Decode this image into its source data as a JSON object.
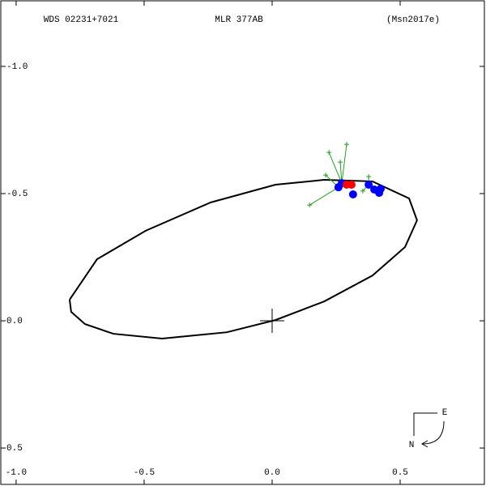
{
  "chart_data": {
    "type": "scatter",
    "title": "MLR 377AB",
    "subtitle": "WDS 02231+7021",
    "reference": "(Msn2017e)",
    "compass": {
      "east": "E",
      "north": "N"
    },
    "xlim": [
      -1.063,
      0.829
    ],
    "ylim": [
      0.643,
      -1.261
    ],
    "xticks": [
      {
        "value": -1,
        "label": "-1.0"
      },
      {
        "value": -0.5,
        "label": "-0.5"
      },
      {
        "value": 0,
        "label": "0.0"
      },
      {
        "value": 0.5,
        "label": "0.5"
      }
    ],
    "yticks": [
      {
        "value": -1,
        "label": "-1.0"
      },
      {
        "value": -0.5,
        "label": "-0.5"
      },
      {
        "value": 0,
        "label": "0.0"
      },
      {
        "value": 0.5,
        "label": "0.5"
      }
    ],
    "series": [
      {
        "marker": "line",
        "color": "#000000",
        "x": [
          -0.791,
          -0.684,
          -0.494,
          -0.241,
          0.013,
          0.203,
          0.392,
          0.535,
          0.566,
          0.519,
          0.392,
          0.203,
          0.013,
          -0.177,
          -0.43,
          -0.62,
          -0.731,
          -0.785,
          -0.791
        ],
        "y": [
          -0.083,
          -0.242,
          -0.354,
          -0.465,
          -0.535,
          -0.554,
          -0.548,
          -0.481,
          -0.395,
          -0.29,
          -0.178,
          -0.076,
          -0.003,
          0.045,
          0.07,
          0.051,
          0.013,
          -0.035,
          -0.083
        ]
      },
      {
        "marker": "plus",
        "color": "#22a022",
        "x": [
          0.146,
          0.222,
          0.291,
          0.266,
          0.209,
          0.377,
          0.354
        ],
        "y": [
          -0.455,
          -0.662,
          -0.694,
          -0.624,
          -0.573,
          -0.567,
          -0.51
        ]
      },
      {
        "marker": "circle",
        "color": "#0000ff",
        "x": [
          0.259,
          0.272,
          0.316,
          0.377,
          0.399,
          0.418,
          0.424
        ],
        "y": [
          -0.525,
          -0.541,
          -0.497,
          -0.535,
          -0.516,
          -0.503,
          -0.519
        ]
      },
      {
        "marker": "circle",
        "color": "#ff0000",
        "x": [
          0.291,
          0.31
        ],
        "y": [
          -0.535,
          -0.535
        ]
      }
    ]
  }
}
